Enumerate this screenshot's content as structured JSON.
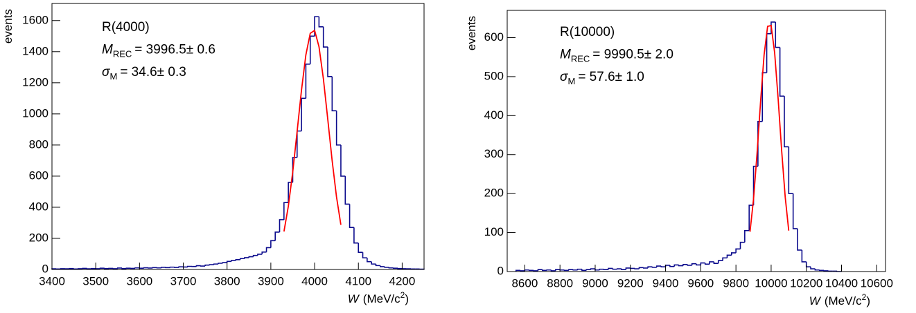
{
  "chart_data": [
    {
      "type": "histogram",
      "y_label": "events",
      "x_label": {
        "symbol": "W",
        "text": "(MeV/c",
        "superscript": "2",
        "suffix": ")"
      },
      "annotations": [
        {
          "text": "R(4000)"
        },
        {
          "symbol": "M",
          "subscript": "REC",
          "text": "= 3996.5± 0.6"
        },
        {
          "symbol": "σ",
          "subscript": "M",
          "text": "= 34.6± 0.3"
        }
      ],
      "xlim": [
        3400,
        4250
      ],
      "ylim": [
        0,
        1710
      ],
      "xticks": [
        3400,
        3500,
        3600,
        3700,
        3800,
        3900,
        4000,
        4100,
        4200
      ],
      "yticks": [
        0,
        200,
        400,
        600,
        800,
        1000,
        1200,
        1400,
        1600
      ],
      "color": "#0a0a8c",
      "bins": [
        3400,
        3410,
        3420,
        3430,
        3440,
        3450,
        3460,
        3470,
        3480,
        3490,
        3500,
        3510,
        3520,
        3530,
        3540,
        3550,
        3560,
        3570,
        3580,
        3590,
        3600,
        3610,
        3620,
        3630,
        3640,
        3650,
        3660,
        3670,
        3680,
        3690,
        3700,
        3710,
        3720,
        3730,
        3740,
        3750,
        3760,
        3770,
        3780,
        3790,
        3800,
        3810,
        3820,
        3830,
        3840,
        3850,
        3860,
        3870,
        3880,
        3890,
        3900,
        3910,
        3920,
        3930,
        3940,
        3950,
        3960,
        3970,
        3980,
        3990,
        4000,
        4010,
        4020,
        4030,
        4040,
        4050,
        4060,
        4070,
        4080,
        4090,
        4100,
        4110,
        4120,
        4130,
        4140,
        4150,
        4160,
        4170,
        4180,
        4190,
        4200,
        4210,
        4220,
        4230,
        4240,
        4250
      ],
      "values": [
        4,
        3,
        5,
        4,
        6,
        3,
        5,
        7,
        4,
        6,
        5,
        8,
        6,
        7,
        5,
        9,
        6,
        8,
        7,
        10,
        8,
        11,
        9,
        12,
        10,
        14,
        12,
        15,
        13,
        17,
        16,
        20,
        19,
        24,
        22,
        28,
        31,
        35,
        40,
        44,
        52,
        58,
        63,
        70,
        76,
        82,
        90,
        98,
        112,
        140,
        185,
        240,
        320,
        430,
        560,
        720,
        890,
        1100,
        1320,
        1500,
        1625,
        1560,
        1430,
        1240,
        1020,
        800,
        600,
        420,
        270,
        170,
        110,
        75,
        50,
        35,
        25,
        18,
        14,
        10,
        8,
        6,
        5,
        4,
        3,
        3,
        2
      ],
      "fit": {
        "color": "#ff0000",
        "x": [
          3930,
          3940,
          3950,
          3960,
          3970,
          3980,
          3990,
          4000,
          4010,
          4020,
          4030,
          4040,
          4050,
          4060
        ],
        "y": [
          244,
          407,
          626,
          886,
          1152,
          1379,
          1518,
          1537,
          1432,
          1227,
          967,
          701,
          467,
          287
        ]
      }
    },
    {
      "type": "histogram",
      "y_label": "events",
      "x_label": {
        "symbol": "W",
        "text": "(MeV/c",
        "superscript": "2",
        "suffix": ")"
      },
      "annotations": [
        {
          "text": "R(10000)"
        },
        {
          "symbol": "M",
          "subscript": "REC",
          "text": "= 9990.5± 2.0"
        },
        {
          "symbol": "σ",
          "subscript": "M",
          "text": "= 57.6± 1.0"
        }
      ],
      "xlim": [
        8500,
        10650
      ],
      "ylim": [
        0,
        670
      ],
      "xticks": [
        8600,
        8800,
        9000,
        9200,
        9400,
        9600,
        9800,
        10000,
        10200,
        10400,
        10600
      ],
      "yticks": [
        0,
        100,
        200,
        300,
        400,
        500,
        600
      ],
      "color": "#0a0a8c",
      "bins": [
        8550,
        8575,
        8600,
        8625,
        8650,
        8675,
        8700,
        8725,
        8750,
        8775,
        8800,
        8825,
        8850,
        8875,
        8900,
        8925,
        8950,
        8975,
        9000,
        9025,
        9050,
        9075,
        9100,
        9125,
        9150,
        9175,
        9200,
        9225,
        9250,
        9275,
        9300,
        9325,
        9350,
        9375,
        9400,
        9425,
        9450,
        9475,
        9500,
        9525,
        9550,
        9575,
        9600,
        9625,
        9650,
        9675,
        9700,
        9725,
        9750,
        9775,
        9800,
        9825,
        9850,
        9875,
        9900,
        9925,
        9950,
        9975,
        10000,
        10025,
        10050,
        10075,
        10100,
        10125,
        10150,
        10175,
        10200,
        10225,
        10250,
        10275,
        10300,
        10325,
        10350,
        10375,
        10400
      ],
      "values": [
        3,
        2,
        4,
        3,
        2,
        5,
        3,
        4,
        2,
        5,
        4,
        3,
        5,
        4,
        6,
        3,
        5,
        7,
        4,
        6,
        5,
        8,
        6,
        7,
        5,
        9,
        8,
        7,
        10,
        9,
        12,
        11,
        14,
        12,
        16,
        13,
        17,
        15,
        18,
        16,
        20,
        17,
        22,
        19,
        25,
        21,
        28,
        35,
        42,
        48,
        58,
        75,
        105,
        170,
        270,
        385,
        510,
        610,
        640,
        575,
        450,
        320,
        200,
        110,
        55,
        25,
        12,
        7,
        4,
        3,
        2,
        1,
        1,
        0
      ],
      "fit": {
        "color": "#ff0000",
        "x": [
          9880,
          9900,
          9920,
          9940,
          9960,
          9980,
          10000,
          10020,
          10040,
          10060,
          10080,
          10100
        ],
        "y": [
          102,
          186,
          303,
          436,
          556,
          629,
          631,
          561,
          442,
          309,
          191,
          105
        ]
      }
    }
  ]
}
